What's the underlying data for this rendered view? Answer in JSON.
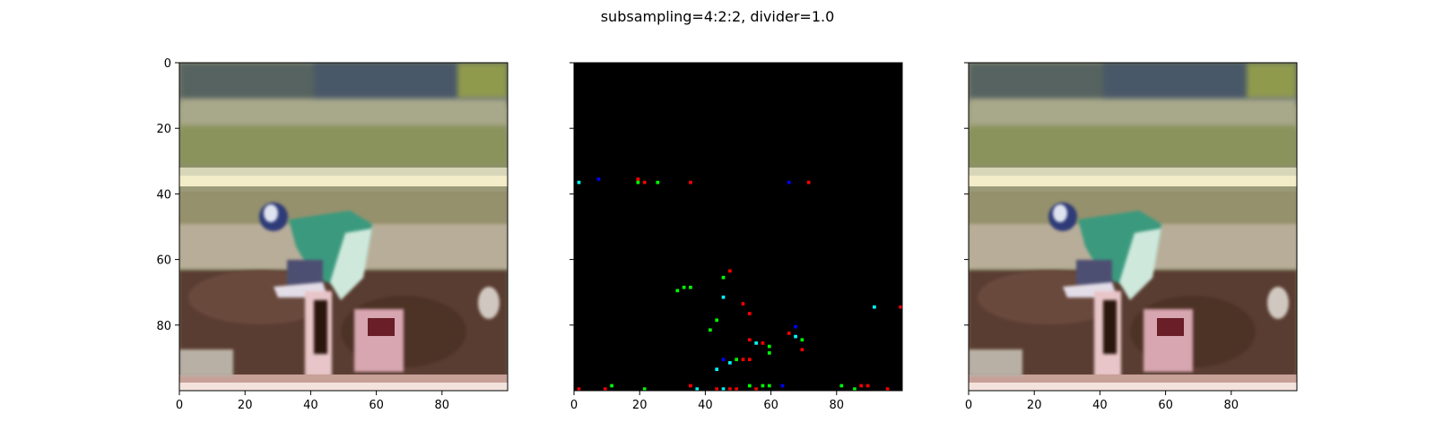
{
  "figure": {
    "title": "subsampling=4:2:2, divider=1.0"
  },
  "chart_data": [
    {
      "type": "image",
      "panel": "left",
      "content": "photo of jockey on horse (original)",
      "xlim": [
        0,
        100
      ],
      "ylim": [
        100,
        0
      ],
      "xticks": [
        0,
        20,
        40,
        60,
        80
      ],
      "yticks": [
        0,
        20,
        40,
        60,
        80
      ],
      "xtick_labels": [
        "0",
        "20",
        "40",
        "60",
        "80"
      ],
      "ytick_labels": [
        "0",
        "20",
        "40",
        "60",
        "80"
      ]
    },
    {
      "type": "image",
      "panel": "middle",
      "content": "difference map: black background with sparse colored pixels",
      "xlim": [
        0,
        100
      ],
      "ylim": [
        100,
        0
      ],
      "xticks": [
        0,
        20,
        40,
        60,
        80
      ],
      "yticks": [
        0,
        20,
        40,
        60,
        80
      ],
      "xtick_labels": [
        "0",
        "20",
        "40",
        "60",
        "80"
      ],
      "ytick_labels": [],
      "points": [
        {
          "x": 1,
          "y": 36,
          "color": "#00ffff"
        },
        {
          "x": 7,
          "y": 35,
          "color": "#0000ff"
        },
        {
          "x": 19,
          "y": 35,
          "color": "#ff0000"
        },
        {
          "x": 19,
          "y": 36,
          "color": "#00ff00"
        },
        {
          "x": 21,
          "y": 36,
          "color": "#ff0000"
        },
        {
          "x": 25,
          "y": 36,
          "color": "#00ff00"
        },
        {
          "x": 35,
          "y": 36,
          "color": "#ff0000"
        },
        {
          "x": 65,
          "y": 36,
          "color": "#0000ff"
        },
        {
          "x": 71,
          "y": 36,
          "color": "#ff0000"
        },
        {
          "x": 47,
          "y": 63,
          "color": "#ff0000"
        },
        {
          "x": 45,
          "y": 65,
          "color": "#00ff00"
        },
        {
          "x": 33,
          "y": 68,
          "color": "#00ff00"
        },
        {
          "x": 35,
          "y": 68,
          "color": "#00ff00"
        },
        {
          "x": 31,
          "y": 69,
          "color": "#00ff00"
        },
        {
          "x": 45,
          "y": 71,
          "color": "#00ffff"
        },
        {
          "x": 51,
          "y": 73,
          "color": "#ff0000"
        },
        {
          "x": 91,
          "y": 74,
          "color": "#00ffff"
        },
        {
          "x": 99,
          "y": 74,
          "color": "#ff0000"
        },
        {
          "x": 53,
          "y": 76,
          "color": "#ff0000"
        },
        {
          "x": 43,
          "y": 78,
          "color": "#00ff00"
        },
        {
          "x": 41,
          "y": 81,
          "color": "#00ff00"
        },
        {
          "x": 67,
          "y": 80,
          "color": "#0000ff"
        },
        {
          "x": 65,
          "y": 82,
          "color": "#ff0000"
        },
        {
          "x": 67,
          "y": 83,
          "color": "#00ffff"
        },
        {
          "x": 69,
          "y": 84,
          "color": "#00ff00"
        },
        {
          "x": 53,
          "y": 84,
          "color": "#ff0000"
        },
        {
          "x": 55,
          "y": 85,
          "color": "#00ffff"
        },
        {
          "x": 57,
          "y": 85,
          "color": "#ff0000"
        },
        {
          "x": 59,
          "y": 86,
          "color": "#00ff00"
        },
        {
          "x": 69,
          "y": 87,
          "color": "#ff0000"
        },
        {
          "x": 59,
          "y": 88,
          "color": "#00ff00"
        },
        {
          "x": 45,
          "y": 90,
          "color": "#0000ff"
        },
        {
          "x": 47,
          "y": 91,
          "color": "#00ffff"
        },
        {
          "x": 49,
          "y": 90,
          "color": "#00ff00"
        },
        {
          "x": 51,
          "y": 90,
          "color": "#ff0000"
        },
        {
          "x": 53,
          "y": 90,
          "color": "#ff0000"
        },
        {
          "x": 43,
          "y": 93,
          "color": "#00ffff"
        },
        {
          "x": 1,
          "y": 99,
          "color": "#ff0000"
        },
        {
          "x": 9,
          "y": 99,
          "color": "#ff0000"
        },
        {
          "x": 11,
          "y": 98,
          "color": "#00ff00"
        },
        {
          "x": 21,
          "y": 99,
          "color": "#00ff00"
        },
        {
          "x": 35,
          "y": 98,
          "color": "#ff0000"
        },
        {
          "x": 37,
          "y": 99,
          "color": "#00ffff"
        },
        {
          "x": 43,
          "y": 99,
          "color": "#ff0000"
        },
        {
          "x": 45,
          "y": 99,
          "color": "#00ffff"
        },
        {
          "x": 47,
          "y": 99,
          "color": "#ff0000"
        },
        {
          "x": 49,
          "y": 99,
          "color": "#ff0000"
        },
        {
          "x": 53,
          "y": 98,
          "color": "#00ff00"
        },
        {
          "x": 55,
          "y": 99,
          "color": "#ff0000"
        },
        {
          "x": 57,
          "y": 98,
          "color": "#00ff00"
        },
        {
          "x": 59,
          "y": 98,
          "color": "#00ff00"
        },
        {
          "x": 63,
          "y": 98,
          "color": "#0000ff"
        },
        {
          "x": 81,
          "y": 98,
          "color": "#00ff00"
        },
        {
          "x": 85,
          "y": 99,
          "color": "#00ff00"
        },
        {
          "x": 87,
          "y": 98,
          "color": "#ff0000"
        },
        {
          "x": 89,
          "y": 98,
          "color": "#ff0000"
        },
        {
          "x": 95,
          "y": 99,
          "color": "#ff0000"
        }
      ]
    },
    {
      "type": "image",
      "panel": "right",
      "content": "photo of jockey on horse (reconstructed)",
      "xlim": [
        0,
        100
      ],
      "ylim": [
        100,
        0
      ],
      "xticks": [
        0,
        20,
        40,
        60,
        80
      ],
      "yticks": [
        0,
        20,
        40,
        60,
        80
      ],
      "xtick_labels": [
        "0",
        "20",
        "40",
        "60",
        "80"
      ],
      "ytick_labels": []
    }
  ]
}
